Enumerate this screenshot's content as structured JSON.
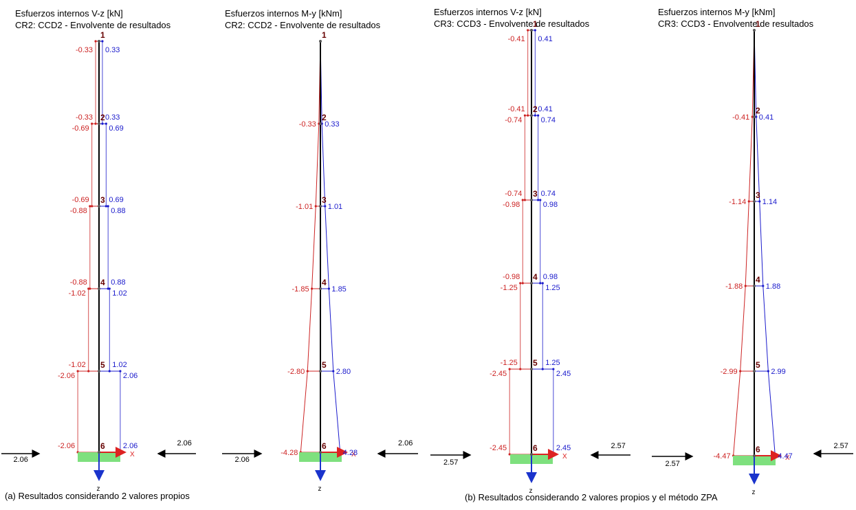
{
  "colors": {
    "negative": "#cc2222",
    "positive": "#1a1acc",
    "structure": "#000000",
    "support": "#7ee07e",
    "axis_x": "#dd2222",
    "axis_z": "#1a33cc"
  },
  "panels": [
    {
      "title": "Esfuerzos internos V-z [kN]",
      "subtitle": "CR2: CCD2 - Envolvente de resultados",
      "type": "shear",
      "axis_x_label": "X",
      "axis_z_label": "z",
      "nodes": [
        "1",
        "2",
        "3",
        "4",
        "5",
        "6"
      ],
      "neg_labels": [
        [
          "-0.33"
        ],
        [
          "-0.33",
          "-0.69"
        ],
        [
          "-0.69",
          "-0.88"
        ],
        [
          "-0.88",
          "-1.02"
        ],
        [
          "-1.02",
          "-2.06"
        ],
        [
          "-2.06"
        ]
      ],
      "pos_labels": [
        [
          "0.33"
        ],
        [
          "0.33",
          "0.69"
        ],
        [
          "0.69",
          "0.88"
        ],
        [
          "0.88",
          "1.02"
        ],
        [
          "1.02",
          "2.06"
        ],
        [
          "2.06"
        ]
      ],
      "neg_values": [
        -0.33,
        -0.69,
        -0.88,
        -1.02,
        -2.06
      ],
      "pos_values": [
        0.33,
        0.69,
        0.88,
        1.02,
        2.06
      ],
      "load_left": "2.06",
      "load_right": "2.06"
    },
    {
      "title": "Esfuerzos internos M-y [kNm]",
      "subtitle": "CR2: CCD2 - Envolvente de resultados",
      "type": "moment",
      "axis_x_label": "X",
      "axis_z_label": "z",
      "nodes": [
        "1",
        "2",
        "3",
        "4",
        "5",
        "6"
      ],
      "neg_labels": [
        [],
        [
          "-0.33"
        ],
        [
          "-1.01"
        ],
        [
          "-1.85"
        ],
        [
          "-2.80"
        ],
        [
          "-4.28"
        ]
      ],
      "pos_labels": [
        [],
        [
          "0.33"
        ],
        [
          "1.01"
        ],
        [
          "1.85"
        ],
        [
          "2.80"
        ],
        [
          "4.28"
        ]
      ],
      "neg_values": [
        0,
        -0.33,
        -1.01,
        -1.85,
        -2.8,
        -4.28
      ],
      "pos_values": [
        0,
        0.33,
        1.01,
        1.85,
        2.8,
        4.28
      ],
      "load_left": "2.06",
      "load_right": "2.06"
    },
    {
      "title": "Esfuerzos internos V-z [kN]",
      "subtitle": "CR3: CCD3 - Envolvente de resultados",
      "type": "shear",
      "axis_x_label": "X",
      "axis_z_label": "z",
      "nodes": [
        "1",
        "2",
        "3",
        "4",
        "5",
        "6"
      ],
      "neg_labels": [
        [
          "-0.41"
        ],
        [
          "-0.41",
          "-0.74"
        ],
        [
          "-0.74",
          "-0.98"
        ],
        [
          "-0.98",
          "-1.25"
        ],
        [
          "-1.25",
          "-2.45"
        ],
        [
          "-2.45"
        ]
      ],
      "pos_labels": [
        [
          "0.41"
        ],
        [
          "0.41",
          "0.74"
        ],
        [
          "0.74",
          "0.98"
        ],
        [
          "0.98",
          "1.25"
        ],
        [
          "1.25",
          "2.45"
        ],
        [
          "2.45"
        ]
      ],
      "neg_values": [
        -0.41,
        -0.74,
        -0.98,
        -1.25,
        -2.45
      ],
      "pos_values": [
        0.41,
        0.74,
        0.98,
        1.25,
        2.45
      ],
      "load_left": "2.57",
      "load_right": "2.57"
    },
    {
      "title": "Esfuerzos internos M-y [kNm]",
      "subtitle": "CR3: CCD3 - Envolvente de resultados",
      "type": "moment",
      "axis_x_label": "X",
      "axis_z_label": "z",
      "nodes": [
        "1",
        "2",
        "3",
        "4",
        "5",
        "6"
      ],
      "neg_labels": [
        [],
        [
          "-0.41"
        ],
        [
          "-1.14"
        ],
        [
          "-1.88"
        ],
        [
          "-2.99"
        ],
        [
          "-4.47"
        ]
      ],
      "pos_labels": [
        [],
        [
          "0.41"
        ],
        [
          "1.14"
        ],
        [
          "1.88"
        ],
        [
          "2.99"
        ],
        [
          "4.47"
        ]
      ],
      "neg_values": [
        0,
        -0.41,
        -1.14,
        -1.88,
        -2.99,
        -4.47
      ],
      "pos_values": [
        0,
        0.41,
        1.14,
        1.88,
        2.99,
        4.47
      ],
      "load_left": "2.57",
      "load_right": "2.57"
    }
  ],
  "captions": {
    "a": "(a) Resultados considerando 2 valores propios",
    "b": "(b) Resultados considerando 2 valores propios y el método ZPA"
  }
}
